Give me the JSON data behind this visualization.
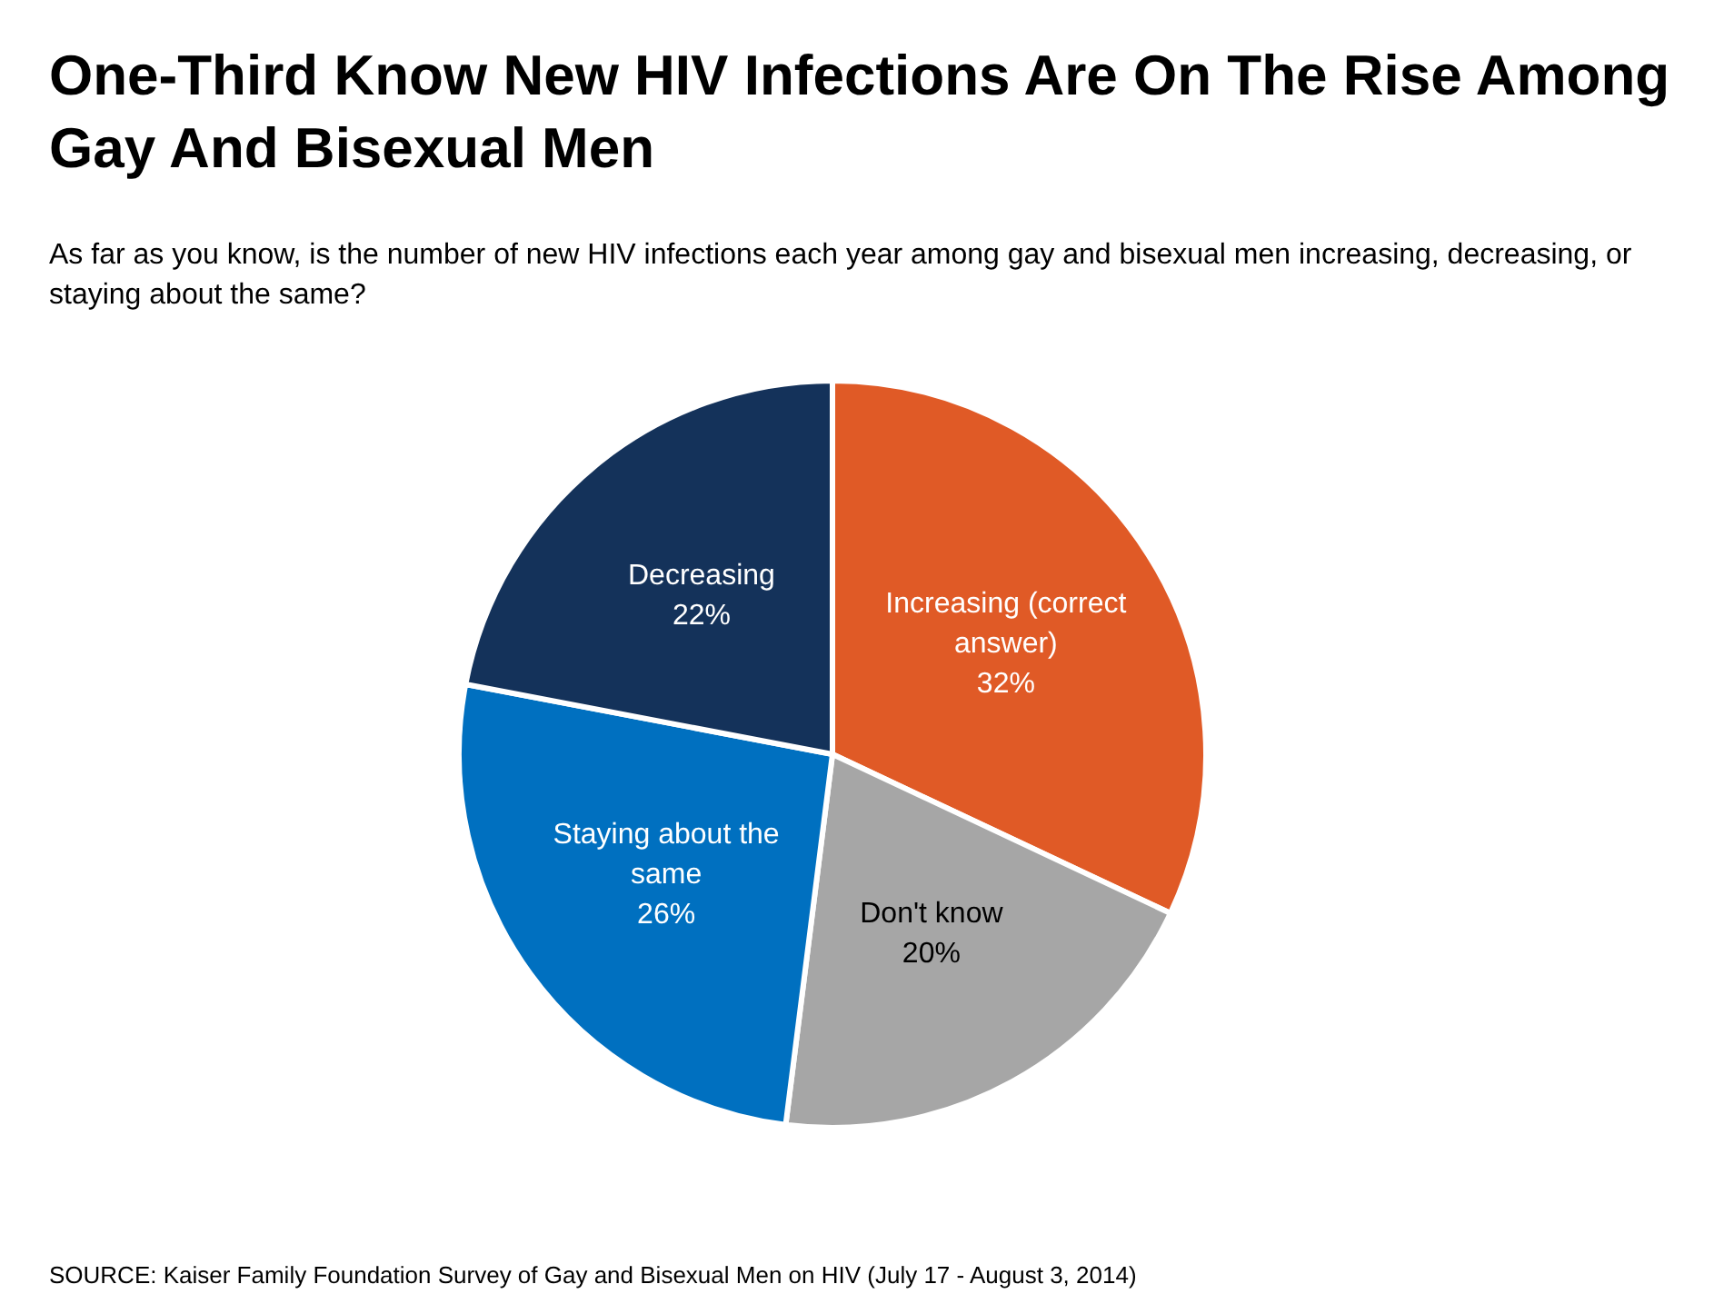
{
  "chart_data": {
    "type": "pie",
    "title": "One-Third Know New HIV Infections Are On The Rise Among Gay And Bisexual Men",
    "subtitle": "As far as you know, is the number of new HIV infections each year among gay and bisexual men increasing, decreasing, or staying about the same?",
    "categories": [
      "Increasing (correct answer)",
      "Don't know",
      "Staying about the same",
      "Decreasing"
    ],
    "values": [
      32,
      20,
      26,
      22
    ],
    "colors": [
      "#e05a26",
      "#a6a6a6",
      "#0070c0",
      "#14325a"
    ],
    "value_labels": [
      "32%",
      "20%",
      "26%",
      "22%"
    ],
    "annotations": [
      "SOURCE: Kaiser Family Foundation Survey of Gay and Bisexual Men on HIV (July 17 - August 3, 2014)"
    ],
    "legend": false
  }
}
